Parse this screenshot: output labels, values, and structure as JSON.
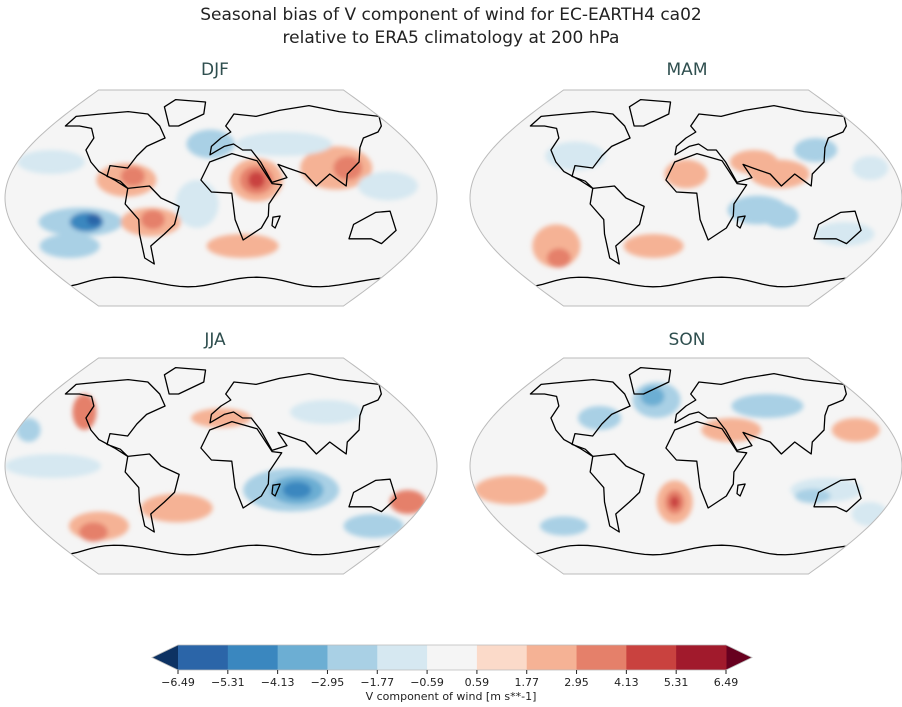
{
  "figure": {
    "title_line1": "Seasonal bias of V component of wind for EC-EARTH4 ca02",
    "title_line2": "relative to ERA5 climatology at 200 hPa"
  },
  "panels": [
    {
      "title": "DJF"
    },
    {
      "title": "MAM"
    },
    {
      "title": "JJA"
    },
    {
      "title": "SON"
    }
  ],
  "colorbar": {
    "label": "V component of wind [m s**-1]",
    "ticks": [
      "−6.49",
      "−5.31",
      "−4.13",
      "−2.95",
      "−1.77",
      "−0.59",
      "0.59",
      "1.77",
      "2.95",
      "4.13",
      "5.31",
      "6.49"
    ],
    "colors": [
      "#2b65a8",
      "#3a87bf",
      "#6caed3",
      "#a9d0e5",
      "#d6e8f1",
      "#f5f5f5",
      "#fbdac9",
      "#f5b295",
      "#e5806a",
      "#c9423f",
      "#a11a2c"
    ],
    "under_color": "#0d3263",
    "over_color": "#67001f",
    "extend": "both"
  },
  "colormap": "RdBu_r",
  "projection": "Robinson"
}
